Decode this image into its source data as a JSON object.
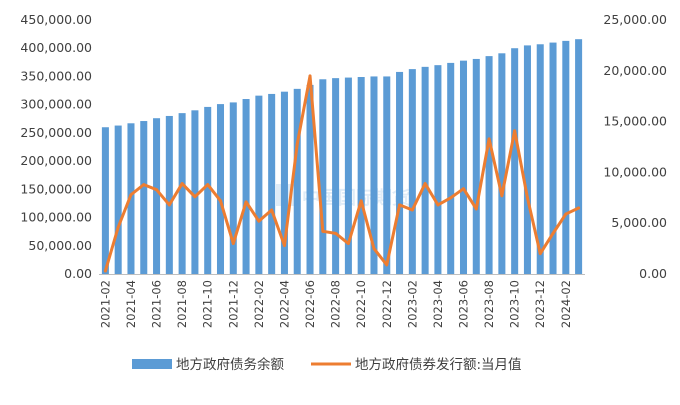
{
  "chart_data": {
    "type": "bar+line",
    "categories": [
      "2021-02",
      "2021-03",
      "2021-04",
      "2021-05",
      "2021-06",
      "2021-07",
      "2021-08",
      "2021-09",
      "2021-10",
      "2021-11",
      "2021-12",
      "2022-01",
      "2022-02",
      "2022-03",
      "2022-04",
      "2022-05",
      "2022-06",
      "2022-07",
      "2022-08",
      "2022-09",
      "2022-10",
      "2022-11",
      "2022-12",
      "2023-01",
      "2023-02",
      "2023-03",
      "2023-04",
      "2023-05",
      "2023-06",
      "2023-07",
      "2023-08",
      "2023-09",
      "2023-10",
      "2023-11",
      "2023-12",
      "2024-01",
      "2024-02",
      "2024-03"
    ],
    "x_tick_labels": [
      "2021-02",
      "2021-04",
      "2021-06",
      "2021-08",
      "2021-10",
      "2021-12",
      "2022-02",
      "2022-04",
      "2022-06",
      "2022-08",
      "2022-10",
      "2022-12",
      "2023-02",
      "2023-04",
      "2023-06",
      "2023-08",
      "2023-10",
      "2023-12",
      "2024-02"
    ],
    "y_left": {
      "min": 0,
      "max": 450000,
      "ticks": [
        "0.00",
        "50,000.00",
        "100,000.00",
        "150,000.00",
        "200,000.00",
        "250,000.00",
        "300,000.00",
        "350,000.00",
        "400,000.00",
        "450,000.00"
      ]
    },
    "y_right": {
      "min": 0,
      "max": 25000,
      "ticks": [
        "0.00",
        "5,000.00",
        "10,000.00",
        "15,000.00",
        "20,000.00",
        "25,000.00"
      ]
    },
    "series": [
      {
        "name": "地方政府债务余额",
        "type": "bar",
        "axis": "left",
        "color": "#5b9bd5",
        "values": [
          260000,
          263000,
          267000,
          271000,
          276000,
          280000,
          285000,
          290000,
          296000,
          301000,
          304000,
          310000,
          316000,
          319000,
          323000,
          328000,
          335000,
          345000,
          347000,
          348000,
          349000,
          350000,
          350000,
          358000,
          363000,
          367000,
          370000,
          374000,
          378000,
          381000,
          386000,
          391000,
          400000,
          405000,
          407000,
          410000,
          413000,
          416000
        ]
      },
      {
        "name": "地方政府债券发行额:当月值",
        "type": "line",
        "axis": "right",
        "color": "#ed7d31",
        "values": [
          300,
          4600,
          7800,
          8800,
          8300,
          6800,
          8900,
          7600,
          8800,
          7200,
          3000,
          7100,
          5200,
          6300,
          2800,
          12800,
          19500,
          4200,
          4000,
          3000,
          7200,
          2500,
          900,
          6800,
          6300,
          8900,
          6800,
          7500,
          8400,
          6400,
          13300,
          7700,
          14100,
          7500,
          2000,
          4000,
          5900,
          6500
        ]
      }
    ],
    "legend": [
      "地方政府债务余额",
      "地方政府债券发行额:当月值"
    ],
    "legend_position": "bottom",
    "watermark": "中国国际期货",
    "grid": false
  }
}
